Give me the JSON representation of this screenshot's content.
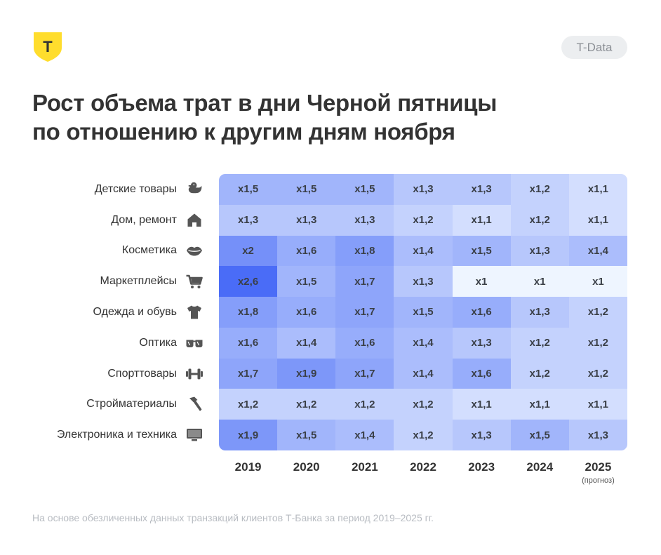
{
  "header": {
    "badge": "T-Data",
    "logo_letter": "Т",
    "title_line1": "Рост объема трат в дни Черной пятницы",
    "title_line2": "по отношению к другим дням ноября"
  },
  "footnote": "На основе обезличенных данных транзакций клиентов Т-Банка за период 2019–2025 гг.",
  "colors": {
    "logo_yellow": "#ffdd2d",
    "scale_low": "#eef5ff",
    "scale_high": "#4a6cf7"
  },
  "chart_data": {
    "type": "heatmap",
    "title": "Рост объема трат в дни Черной пятницы по отношению к другим дням ноября",
    "x": [
      {
        "year": "2019",
        "note": ""
      },
      {
        "year": "2020",
        "note": ""
      },
      {
        "year": "2021",
        "note": ""
      },
      {
        "year": "2022",
        "note": ""
      },
      {
        "year": "2023",
        "note": ""
      },
      {
        "year": "2024",
        "note": ""
      },
      {
        "year": "2025",
        "note": "(прогноз)"
      }
    ],
    "rows": [
      {
        "label": "Детские товары",
        "icon": "duck-icon",
        "values": [
          1.5,
          1.5,
          1.5,
          1.3,
          1.3,
          1.2,
          1.1
        ],
        "labels": [
          "x1,5",
          "x1,5",
          "x1,5",
          "x1,3",
          "x1,3",
          "x1,2",
          "x1,1"
        ]
      },
      {
        "label": "Дом, ремонт",
        "icon": "house-icon",
        "values": [
          1.3,
          1.3,
          1.3,
          1.2,
          1.1,
          1.2,
          1.1
        ],
        "labels": [
          "x1,3",
          "x1,3",
          "x1,3",
          "x1,2",
          "x1,1",
          "x1,2",
          "x1,1"
        ]
      },
      {
        "label": "Косметика",
        "icon": "lips-icon",
        "values": [
          2.0,
          1.6,
          1.8,
          1.4,
          1.5,
          1.3,
          1.4
        ],
        "labels": [
          "x2",
          "x1,6",
          "x1,8",
          "x1,4",
          "x1,5",
          "x1,3",
          "x1,4"
        ]
      },
      {
        "label": "Маркетплейсы",
        "icon": "cart-icon",
        "values": [
          2.6,
          1.5,
          1.7,
          1.3,
          1.0,
          1.0,
          1.0
        ],
        "labels": [
          "x2,6",
          "x1,5",
          "x1,7",
          "x1,3",
          "x1",
          "x1",
          "x1"
        ]
      },
      {
        "label": "Одежда и обувь",
        "icon": "tshirt-icon",
        "values": [
          1.8,
          1.6,
          1.7,
          1.5,
          1.6,
          1.3,
          1.2
        ],
        "labels": [
          "x1,8",
          "x1,6",
          "x1,7",
          "x1,5",
          "x1,6",
          "x1,3",
          "x1,2"
        ]
      },
      {
        "label": "Оптика",
        "icon": "glasses-icon",
        "values": [
          1.6,
          1.4,
          1.6,
          1.4,
          1.3,
          1.2,
          1.2
        ],
        "labels": [
          "x1,6",
          "x1,4",
          "x1,6",
          "x1,4",
          "x1,3",
          "x1,2",
          "x1,2"
        ]
      },
      {
        "label": "Спорттовары",
        "icon": "dumbbell-icon",
        "values": [
          1.7,
          1.9,
          1.7,
          1.4,
          1.6,
          1.2,
          1.2
        ],
        "labels": [
          "x1,7",
          "x1,9",
          "x1,7",
          "x1,4",
          "x1,6",
          "x1,2",
          "x1,2"
        ]
      },
      {
        "label": "Стройматериалы",
        "icon": "hammer-icon",
        "values": [
          1.2,
          1.2,
          1.2,
          1.2,
          1.1,
          1.1,
          1.1
        ],
        "labels": [
          "x1,2",
          "x1,2",
          "x1,2",
          "x1,2",
          "x1,1",
          "x1,1",
          "x1,1"
        ]
      },
      {
        "label": "Электроника и техника",
        "icon": "monitor-icon",
        "values": [
          1.9,
          1.5,
          1.4,
          1.2,
          1.3,
          1.5,
          1.3
        ],
        "labels": [
          "x1,9",
          "x1,5",
          "x1,4",
          "x1,2",
          "x1,3",
          "x1,5",
          "x1,3"
        ]
      }
    ]
  }
}
